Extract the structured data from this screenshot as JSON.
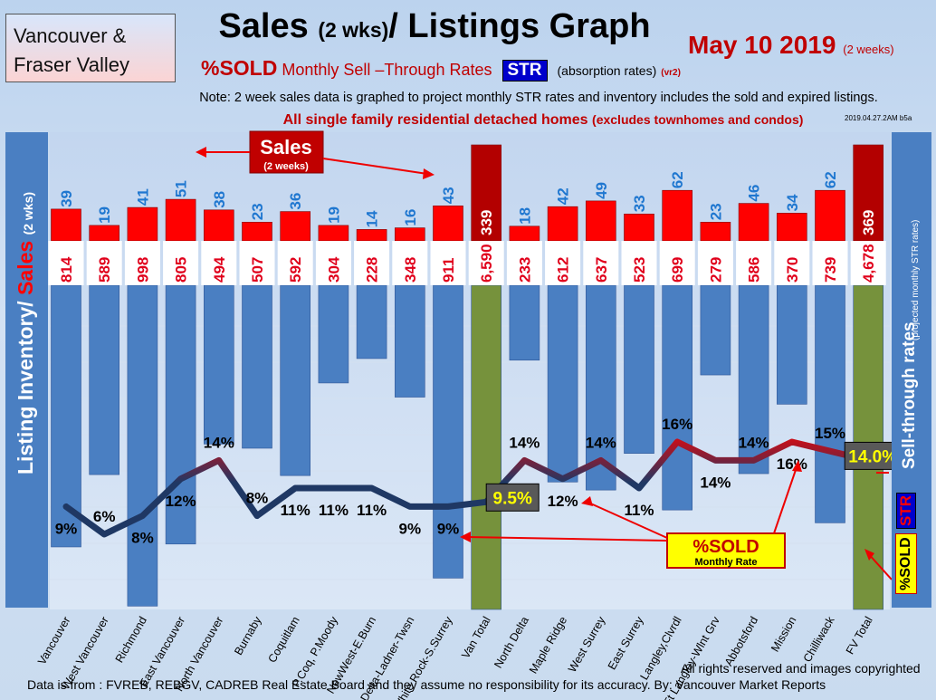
{
  "header": {
    "region_line1": "Vancouver &",
    "region_line2": "Fraser Valley",
    "title": "Sales",
    "title_small": "(2 wks)",
    "title_rest": "/ Listings Graph",
    "date": "May 10 2019",
    "date_suffix": "(2 weeks)",
    "pct_sold": "%SOLD",
    "subtitle_rest": "Monthly Sell –Through Rates",
    "str": "STR",
    "absorption": "(absorption rates)",
    "version": "(vr2)",
    "note": "Note: 2 week sales data is graphed to project monthly STR rates and inventory includes the sold and expired listings.",
    "note2": "All single family residential detached homes",
    "note2_small": "(excludes townhomes and condos)",
    "stamp": "2019.04.27.2AM b5a"
  },
  "left_axis": {
    "label1": "Listing Inventory/",
    "label2": "Sales",
    "label3": "(2 wks)"
  },
  "right_axis": {
    "label": "Sell-through rates",
    "sub": "(projected monthly STR rates)",
    "str": "STR",
    "pct_sold": "%SOLD"
  },
  "callouts": {
    "sales": "Sales",
    "sales_sub": "(2 weeks)",
    "pct_sold": "%SOLD",
    "monthly_rate": "Monthly Rate"
  },
  "footer": {
    "rights": "All rights reserved and  images copyrighted",
    "source": "Data is from : FVREB, REBGV, CADREB Real Estate Board and they assume no responsibility for its accuracy. By: Vancouver Market Reports"
  },
  "chart_data": {
    "type": "bar",
    "categories": [
      "Vancouver",
      "West Vancouver",
      "Richmond",
      "East Vancouver",
      "North Vancouver",
      "Burnaby",
      "Coquitlam",
      "P.Coq, P.Moody",
      "NewWest-E.Burn",
      "Delta-Ladner-Twsn",
      "White Rock-S.Surrey",
      "Van Total",
      "North Delta",
      "Maple Ridge",
      "West Surrey",
      "East Surrey",
      "Langley,Clvrdl",
      "Ft Langley-Wlnt Grv",
      "Abbotsford",
      "Mission",
      "Chilliwack",
      "FV Total"
    ],
    "series": [
      {
        "name": "Sales",
        "values": [
          39,
          19,
          41,
          51,
          38,
          23,
          36,
          19,
          14,
          16,
          43,
          339,
          18,
          42,
          49,
          33,
          62,
          23,
          46,
          34,
          62,
          369
        ]
      },
      {
        "name": "Listing Inventory",
        "values": [
          814,
          589,
          998,
          805,
          494,
          507,
          592,
          304,
          228,
          348,
          911,
          6590,
          233,
          612,
          637,
          523,
          699,
          279,
          586,
          370,
          739,
          4678
        ]
      },
      {
        "name": "%SOLD",
        "values": [
          9,
          6,
          8,
          12,
          14,
          8,
          11,
          11,
          11,
          9,
          9,
          9.5,
          14,
          12,
          14,
          11,
          16,
          14,
          14,
          16,
          15,
          14.0
        ]
      }
    ],
    "pct_labels": [
      "9%",
      "6%",
      "8%",
      "12%",
      "14%",
      "8%",
      "11%",
      "11%",
      "11%",
      "9%",
      "9%",
      "9.5%",
      "14%",
      "12%",
      "14%",
      "11%",
      "16%",
      "14%",
      "14%",
      "16%",
      "15%",
      "14.0%"
    ],
    "listing_labels": [
      "814",
      "589",
      "998",
      "805",
      "494",
      "507",
      "592",
      "304",
      "228",
      "348",
      "911",
      "6,590",
      "233",
      "612",
      "637",
      "523",
      "699",
      "279",
      "586",
      "370",
      "739",
      "4,678"
    ],
    "totals": [
      "Van Total",
      "FV Total"
    ],
    "colors": {
      "sales": "#ff0000",
      "listings": "#4a7fc2",
      "total_listings": "#76923c",
      "total_sales": "#b30000",
      "line_low": "#1f3864",
      "line_high": "#ff0000",
      "pct_box": "#595959",
      "pct_box_text": "#ffff00"
    }
  }
}
